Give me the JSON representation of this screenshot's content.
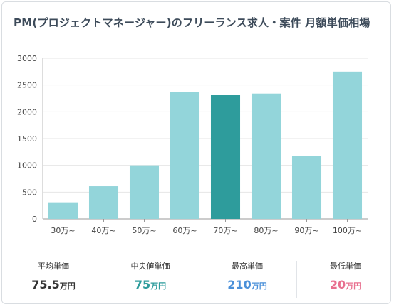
{
  "title": "PM(プロジェクトマネージャー)のフリーランス求人・案件 月額単価相場",
  "chart_data": {
    "type": "bar",
    "title": "PM(プロジェクトマネージャー)のフリーランス求人・案件 月額単価相場",
    "xlabel": "",
    "ylabel": "",
    "categories": [
      "30万~",
      "40万~",
      "50万~",
      "60万~",
      "70万~",
      "80万~",
      "90万~",
      "100万~"
    ],
    "values": [
      310,
      610,
      1000,
      2370,
      2310,
      2340,
      1170,
      2750
    ],
    "highlight_index": 4,
    "ylim": [
      0,
      3000
    ],
    "yticks": [
      0,
      500,
      1000,
      1500,
      2000,
      2500,
      3000
    ],
    "grid": true,
    "legend": "none",
    "bar_color": "#93d5da",
    "highlight_color": "#2e9c9c"
  },
  "stats": [
    {
      "label": "平均単価",
      "value": "75.5",
      "unit": "万円",
      "color": "#333333"
    },
    {
      "label": "中央値単価",
      "value": "75",
      "unit": "万円",
      "color": "#2e9c9c"
    },
    {
      "label": "最高単価",
      "value": "210",
      "unit": "万円",
      "color": "#4a90d9"
    },
    {
      "label": "最低単価",
      "value": "20",
      "unit": "万円",
      "color": "#e8708f"
    }
  ]
}
